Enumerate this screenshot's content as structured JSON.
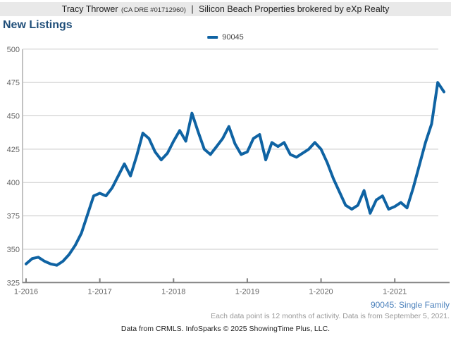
{
  "header": {
    "agent": "Tracy Thrower",
    "license": "(CA DRE #01712960)",
    "separator": "|",
    "brokerage": "Silicon Beach Properties brokered by eXp Realty"
  },
  "title": "New Listings",
  "legend": {
    "label": "90045",
    "color": "#0f63a3"
  },
  "colors": {
    "line": "#0f63a3",
    "grid": "#c8c8c8",
    "axis": "#828282",
    "tick_text": "#666666",
    "title_text": "#1f4e79",
    "header_bg": "#e9e9e9",
    "footnote_blue": "#4d82bc",
    "footnote_gray": "#999999"
  },
  "chart_data": {
    "type": "line",
    "title": "New Listings",
    "xlabel": "",
    "ylabel": "",
    "ylim": [
      325,
      500
    ],
    "yticks": [
      325,
      350,
      375,
      400,
      425,
      450,
      475,
      500
    ],
    "xticks": [
      "1-2016",
      "1-2017",
      "1-2018",
      "1-2019",
      "1-2020",
      "1-2021"
    ],
    "grid": "horizontal",
    "legend_position": "top-center",
    "x": [
      "1-2016",
      "2-2016",
      "3-2016",
      "4-2016",
      "5-2016",
      "6-2016",
      "7-2016",
      "8-2016",
      "9-2016",
      "10-2016",
      "11-2016",
      "12-2016",
      "1-2017",
      "2-2017",
      "3-2017",
      "4-2017",
      "5-2017",
      "6-2017",
      "7-2017",
      "8-2017",
      "9-2017",
      "10-2017",
      "11-2017",
      "12-2017",
      "1-2018",
      "2-2018",
      "3-2018",
      "4-2018",
      "5-2018",
      "6-2018",
      "7-2018",
      "8-2018",
      "9-2018",
      "10-2018",
      "11-2018",
      "12-2018",
      "1-2019",
      "2-2019",
      "3-2019",
      "4-2019",
      "5-2019",
      "6-2019",
      "7-2019",
      "8-2019",
      "9-2019",
      "10-2019",
      "11-2019",
      "12-2019",
      "1-2020",
      "2-2020",
      "3-2020",
      "4-2020",
      "5-2020",
      "6-2020",
      "7-2020",
      "8-2020",
      "9-2020",
      "10-2020",
      "11-2020",
      "12-2020",
      "1-2021",
      "2-2021",
      "3-2021",
      "4-2021",
      "5-2021",
      "6-2021",
      "7-2021",
      "8-2021",
      "9-2021"
    ],
    "series": [
      {
        "name": "90045",
        "color": "#0f63a3",
        "values": [
          339,
          343,
          344,
          341,
          339,
          338,
          341,
          346,
          353,
          362,
          376,
          390,
          392,
          390,
          396,
          405,
          414,
          405,
          420,
          437,
          433,
          423,
          417,
          422,
          431,
          439,
          431,
          452,
          438,
          425,
          421,
          427,
          433,
          442,
          429,
          421,
          423,
          433,
          436,
          417,
          430,
          427,
          430,
          421,
          419,
          422,
          425,
          430,
          425,
          415,
          403,
          393,
          383,
          380,
          383,
          394,
          377,
          387,
          390,
          380,
          382,
          385,
          381,
          396,
          413,
          430,
          444,
          475,
          468
        ]
      }
    ]
  },
  "footnotes": {
    "series_desc": "90045: Single Family",
    "data_note": "Each data point is 12 months of activity. Data is from September 5, 2021.",
    "attribution": "Data from CRMLS. InfoSparks © 2025 ShowingTime Plus, LLC."
  }
}
